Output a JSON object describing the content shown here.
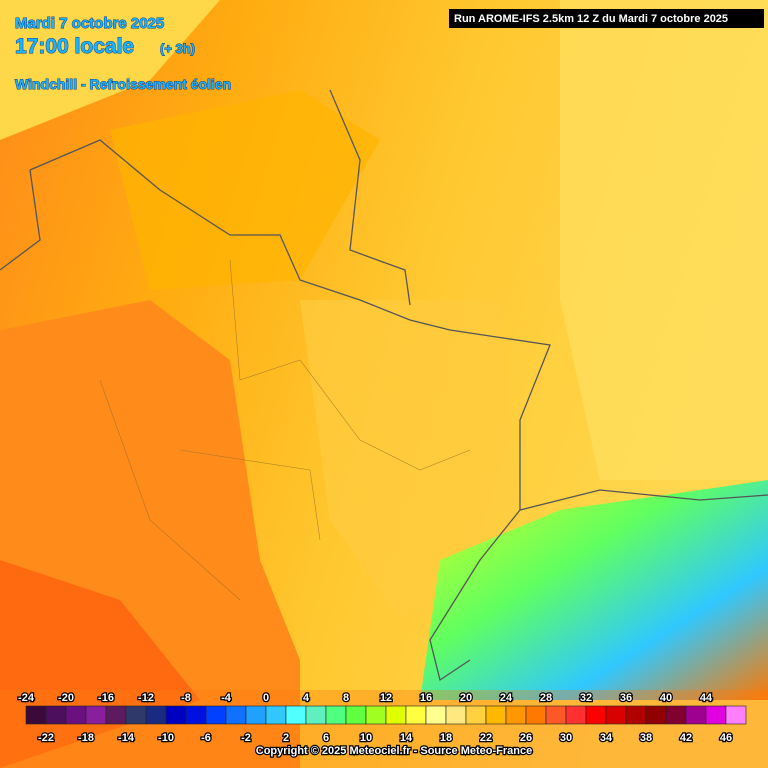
{
  "header": {
    "date": "Mardi 7 octobre 2025",
    "time": "17:00 locale",
    "offset": "(+ 3h)",
    "parameter": "Windchill - Refroissement éolien",
    "run": "Run AROME-IFS 2.5km 12 Z du Mardi 7 octobre 2025"
  },
  "legend": {
    "scale": [
      {
        "value": -24,
        "color": "#3b0a3b"
      },
      {
        "value": -22,
        "color": "#4b0f5e"
      },
      {
        "value": -20,
        "color": "#6b1080"
      },
      {
        "value": -18,
        "color": "#8a1f9e"
      },
      {
        "value": -16,
        "color": "#5e1a5e"
      },
      {
        "value": -14,
        "color": "#303a6a"
      },
      {
        "value": -12,
        "color": "#1a2a80"
      },
      {
        "value": -10,
        "color": "#0000c0"
      },
      {
        "value": -8,
        "color": "#0010e0"
      },
      {
        "value": -6,
        "color": "#0040ff"
      },
      {
        "value": -4,
        "color": "#1070ff"
      },
      {
        "value": -2,
        "color": "#20a0ff"
      },
      {
        "value": 0,
        "color": "#30c8ff"
      },
      {
        "value": 2,
        "color": "#50ffff"
      },
      {
        "value": 4,
        "color": "#60f0c0"
      },
      {
        "value": 6,
        "color": "#50ff80"
      },
      {
        "value": 8,
        "color": "#60ff40"
      },
      {
        "value": 10,
        "color": "#a0ff20"
      },
      {
        "value": 12,
        "color": "#e0ff00"
      },
      {
        "value": 14,
        "color": "#ffff40"
      },
      {
        "value": 16,
        "color": "#ffff90"
      },
      {
        "value": 18,
        "color": "#ffe880"
      },
      {
        "value": 20,
        "color": "#ffd040"
      },
      {
        "value": 22,
        "color": "#ffb800"
      },
      {
        "value": 24,
        "color": "#ff9800"
      },
      {
        "value": 26,
        "color": "#ff7800"
      },
      {
        "value": 28,
        "color": "#ff5828"
      },
      {
        "value": 30,
        "color": "#ff3030"
      },
      {
        "value": 32,
        "color": "#ff0000"
      },
      {
        "value": 34,
        "color": "#d80000"
      },
      {
        "value": 36,
        "color": "#b00000"
      },
      {
        "value": 38,
        "color": "#900000"
      },
      {
        "value": 40,
        "color": "#800030"
      },
      {
        "value": 42,
        "color": "#a00090"
      },
      {
        "value": 44,
        "color": "#e000e0"
      },
      {
        "value": 46,
        "color": "#ff80ff"
      }
    ]
  },
  "footer": {
    "copyright": "Copyright © 2025 Meteociel.fr - Source Meteo-France"
  }
}
